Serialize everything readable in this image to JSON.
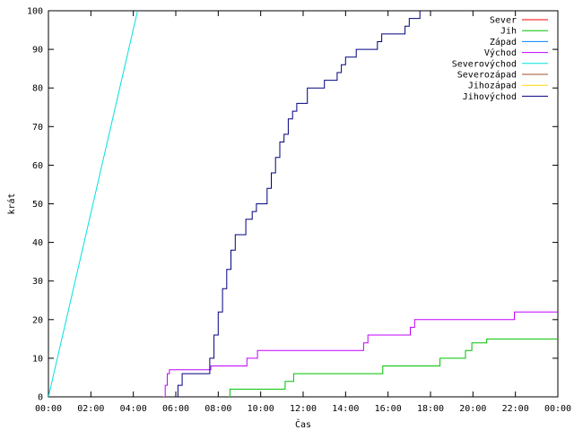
{
  "chart_data": {
    "type": "line",
    "title": "",
    "xlabel": "Čas",
    "ylabel": "krát",
    "xlim_hours": [
      0,
      24
    ],
    "ylim": [
      0,
      100
    ],
    "x_ticks": [
      "00:00",
      "02:00",
      "04:00",
      "06:00",
      "08:00",
      "10:00",
      "12:00",
      "14:00",
      "16:00",
      "18:00",
      "20:00",
      "22:00",
      "00:00"
    ],
    "y_ticks": [
      0,
      10,
      20,
      30,
      40,
      50,
      60,
      70,
      80,
      90,
      100
    ],
    "grid": false,
    "legend_position": "top-right",
    "series": [
      {
        "name": "Sever",
        "color": "#ff0000",
        "step": true,
        "points": []
      },
      {
        "name": "Jih",
        "color": "#00c000",
        "step": true,
        "points": [
          [
            8.5,
            0
          ],
          [
            8.55,
            2
          ],
          [
            11.1,
            2
          ],
          [
            11.15,
            4
          ],
          [
            11.5,
            4
          ],
          [
            11.55,
            6
          ],
          [
            15.7,
            6
          ],
          [
            15.75,
            8
          ],
          [
            18.4,
            8
          ],
          [
            18.45,
            10
          ],
          [
            19.6,
            10
          ],
          [
            19.65,
            12
          ],
          [
            19.9,
            12
          ],
          [
            19.95,
            14
          ],
          [
            20.6,
            14
          ],
          [
            20.65,
            15
          ],
          [
            24,
            15
          ]
        ]
      },
      {
        "name": "Západ",
        "color": "#0080ff",
        "step": true,
        "points": []
      },
      {
        "name": "Východ",
        "color": "#c000ff",
        "step": true,
        "points": [
          [
            5.4,
            0
          ],
          [
            5.5,
            3
          ],
          [
            5.6,
            6
          ],
          [
            5.7,
            7
          ],
          [
            7.6,
            7
          ],
          [
            7.65,
            8
          ],
          [
            9.3,
            8
          ],
          [
            9.35,
            10
          ],
          [
            9.8,
            10
          ],
          [
            9.85,
            12
          ],
          [
            14.8,
            12
          ],
          [
            14.85,
            14
          ],
          [
            15.0,
            14
          ],
          [
            15.05,
            16
          ],
          [
            17.0,
            16
          ],
          [
            17.05,
            18
          ],
          [
            17.2,
            18
          ],
          [
            17.25,
            20
          ],
          [
            21.9,
            20
          ],
          [
            21.95,
            22
          ],
          [
            24,
            22
          ]
        ]
      },
      {
        "name": "Severovýchod",
        "color": "#00e0e0",
        "step": false,
        "points": [
          [
            0,
            0
          ],
          [
            4.2,
            100
          ]
        ]
      },
      {
        "name": "Severozápad",
        "color": "#a0522d",
        "step": true,
        "points": []
      },
      {
        "name": "Jihozápad",
        "color": "#ffd700",
        "step": true,
        "points": []
      },
      {
        "name": "Jihovýchod",
        "color": "#000080",
        "step": true,
        "points": [
          [
            6.0,
            0
          ],
          [
            6.1,
            3
          ],
          [
            6.3,
            6
          ],
          [
            7.4,
            6
          ],
          [
            7.6,
            10
          ],
          [
            7.8,
            16
          ],
          [
            8.0,
            22
          ],
          [
            8.2,
            28
          ],
          [
            8.4,
            33
          ],
          [
            8.6,
            38
          ],
          [
            8.8,
            42
          ],
          [
            9.1,
            42
          ],
          [
            9.3,
            46
          ],
          [
            9.6,
            48
          ],
          [
            9.8,
            50
          ],
          [
            10.1,
            50
          ],
          [
            10.3,
            54
          ],
          [
            10.5,
            58
          ],
          [
            10.7,
            62
          ],
          [
            10.9,
            66
          ],
          [
            11.1,
            68
          ],
          [
            11.3,
            72
          ],
          [
            11.5,
            74
          ],
          [
            11.7,
            76
          ],
          [
            12.0,
            76
          ],
          [
            12.2,
            80
          ],
          [
            12.8,
            80
          ],
          [
            13.0,
            82
          ],
          [
            13.4,
            82
          ],
          [
            13.6,
            84
          ],
          [
            13.8,
            86
          ],
          [
            14.0,
            88
          ],
          [
            14.3,
            88
          ],
          [
            14.5,
            90
          ],
          [
            15.3,
            90
          ],
          [
            15.5,
            92
          ],
          [
            15.7,
            94
          ],
          [
            16.6,
            94
          ],
          [
            16.8,
            96
          ],
          [
            17.0,
            98
          ],
          [
            17.4,
            98
          ],
          [
            17.5,
            100
          ]
        ]
      }
    ]
  }
}
